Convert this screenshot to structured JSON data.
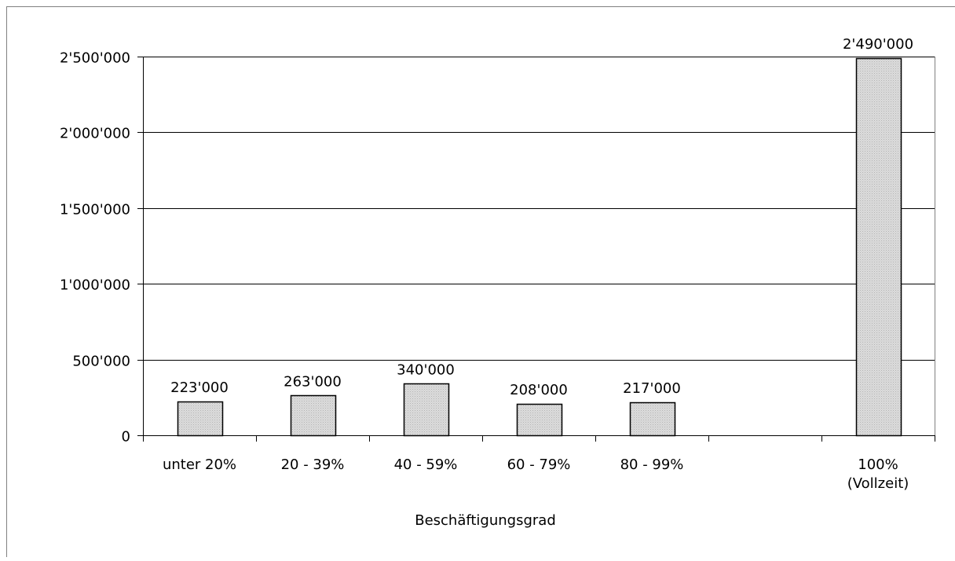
{
  "chart_data": {
    "type": "bar",
    "title": "",
    "xlabel": "Beschäftigungsgrad",
    "ylabel": "",
    "categories": [
      [
        "unter 20%"
      ],
      [
        "20 - 39%"
      ],
      [
        "40 - 59%"
      ],
      [
        "60 - 79%"
      ],
      [
        "80 - 99%"
      ],
      [
        ""
      ],
      [
        "100%",
        "(Vollzeit)"
      ]
    ],
    "values": [
      223000,
      263000,
      340000,
      208000,
      217000,
      null,
      2490000
    ],
    "data_labels": [
      "223'000",
      "263'000",
      "340'000",
      "208'000",
      "217'000",
      "",
      "2'490'000"
    ],
    "ylim": [
      0,
      2500000
    ],
    "yticks": [
      0,
      500000,
      1000000,
      1500000,
      2000000,
      2500000
    ],
    "ytick_labels": [
      "0",
      "500'000",
      "1'000'000",
      "1'500'000",
      "2'000'000",
      "2'500'000"
    ],
    "grid": true,
    "legend": "none",
    "colors": {
      "bar_fill": "#d6d6d6",
      "bar_stroke": "#000000",
      "grid": "#000000",
      "frame": "#808080"
    }
  }
}
